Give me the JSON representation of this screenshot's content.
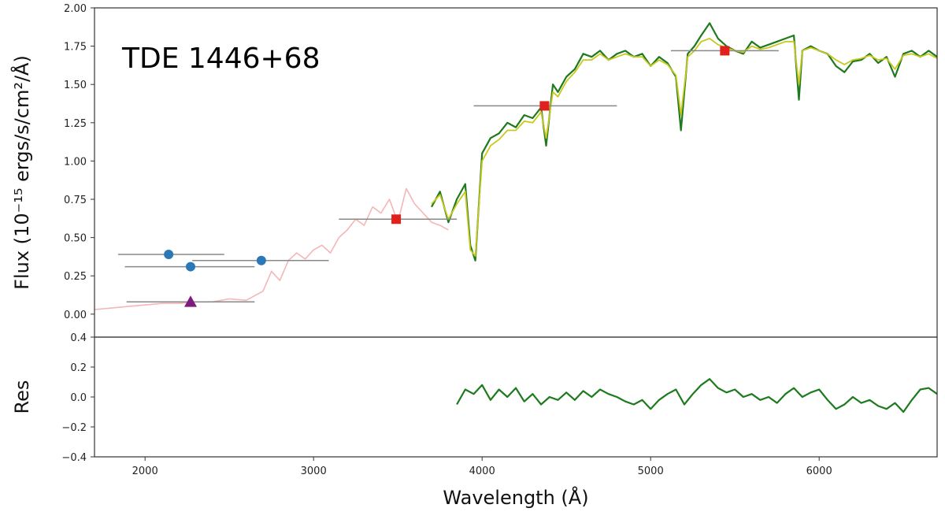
{
  "chart_data": [
    {
      "type": "line",
      "panel": "main",
      "annotation": "TDE 1446+68",
      "xlabel": "Wavelength (Å)",
      "ylabel": "Flux (10⁻¹⁵ ergs/s/cm²/Å)",
      "xlim": [
        1700,
        6700
      ],
      "ylim": [
        -0.15,
        2.0
      ],
      "xticks": [
        2000,
        3000,
        4000,
        5000,
        6000
      ],
      "xtick_labels": [
        "2000",
        "3000",
        "4000",
        "5000",
        "6000"
      ],
      "yticks": [
        0.0,
        0.25,
        0.5,
        0.75,
        1.0,
        1.25,
        1.5,
        1.75,
        2.0
      ],
      "ytick_labels": [
        "0.00",
        "0.25",
        "0.50",
        "0.75",
        "1.00",
        "1.25",
        "1.50",
        "1.75",
        "2.00"
      ],
      "grid": false,
      "colors": {
        "template": "#f4b6b6",
        "observed": "#1e7a1e",
        "model": "#c8c81e",
        "errorbar": "#888888",
        "uv_points": "#2b78b8",
        "triangle": "#7d1a7d",
        "optical_points": "#e0201c"
      },
      "series": [
        {
          "style": "template-line",
          "x": [
            1700,
            1800,
            1900,
            2000,
            2100,
            2200,
            2300,
            2400,
            2500,
            2600,
            2700,
            2750,
            2800,
            2850,
            2900,
            2950,
            3000,
            3050,
            3100,
            3150,
            3200,
            3250,
            3300,
            3350,
            3400,
            3450,
            3500,
            3550,
            3600,
            3650,
            3700,
            3750,
            3800
          ],
          "y": [
            0.03,
            0.04,
            0.05,
            0.06,
            0.07,
            0.07,
            0.08,
            0.08,
            0.1,
            0.09,
            0.15,
            0.28,
            0.22,
            0.35,
            0.4,
            0.36,
            0.42,
            0.45,
            0.4,
            0.5,
            0.55,
            0.62,
            0.58,
            0.7,
            0.66,
            0.75,
            0.6,
            0.82,
            0.72,
            0.66,
            0.6,
            0.58,
            0.55
          ]
        },
        {
          "style": "observed-line",
          "x": [
            3700,
            3750,
            3800,
            3850,
            3900,
            3930,
            3960,
            4000,
            4050,
            4100,
            4150,
            4200,
            4250,
            4300,
            4350,
            4380,
            4420,
            4450,
            4500,
            4550,
            4600,
            4650,
            4700,
            4750,
            4800,
            4850,
            4900,
            4950,
            5000,
            5050,
            5100,
            5150,
            5180,
            5220,
            5260,
            5300,
            5350,
            5400,
            5450,
            5500,
            5550,
            5600,
            5650,
            5700,
            5750,
            5800,
            5850,
            5880,
            5900,
            5950,
            6000,
            6050,
            6100,
            6150,
            6200,
            6250,
            6300,
            6350,
            6400,
            6450,
            6500,
            6550,
            6600,
            6650,
            6700
          ],
          "y": [
            0.7,
            0.8,
            0.6,
            0.75,
            0.85,
            0.45,
            0.35,
            1.05,
            1.15,
            1.18,
            1.25,
            1.22,
            1.3,
            1.28,
            1.35,
            1.1,
            1.5,
            1.45,
            1.55,
            1.6,
            1.7,
            1.68,
            1.72,
            1.66,
            1.7,
            1.72,
            1.68,
            1.7,
            1.62,
            1.68,
            1.64,
            1.55,
            1.2,
            1.7,
            1.75,
            1.82,
            1.9,
            1.8,
            1.75,
            1.72,
            1.7,
            1.78,
            1.74,
            1.76,
            1.78,
            1.8,
            1.82,
            1.4,
            1.72,
            1.75,
            1.72,
            1.7,
            1.62,
            1.58,
            1.65,
            1.66,
            1.7,
            1.64,
            1.68,
            1.55,
            1.7,
            1.72,
            1.68,
            1.72,
            1.68
          ]
        },
        {
          "style": "model-line",
          "x": [
            3700,
            3750,
            3800,
            3850,
            3900,
            3930,
            3960,
            4000,
            4050,
            4100,
            4150,
            4200,
            4250,
            4300,
            4350,
            4380,
            4420,
            4450,
            4500,
            4550,
            4600,
            4650,
            4700,
            4750,
            4800,
            4850,
            4900,
            4950,
            5000,
            5050,
            5100,
            5150,
            5180,
            5220,
            5260,
            5300,
            5350,
            5400,
            5450,
            5500,
            5550,
            5600,
            5650,
            5700,
            5750,
            5800,
            5850,
            5880,
            5900,
            5950,
            6000,
            6050,
            6100,
            6150,
            6200,
            6250,
            6300,
            6350,
            6400,
            6450,
            6500,
            6550,
            6600,
            6650,
            6700
          ],
          "y": [
            0.72,
            0.78,
            0.62,
            0.72,
            0.8,
            0.42,
            0.38,
            1.0,
            1.1,
            1.14,
            1.2,
            1.2,
            1.26,
            1.25,
            1.32,
            1.15,
            1.45,
            1.42,
            1.52,
            1.58,
            1.66,
            1.66,
            1.7,
            1.66,
            1.68,
            1.7,
            1.68,
            1.68,
            1.62,
            1.66,
            1.63,
            1.56,
            1.3,
            1.68,
            1.72,
            1.78,
            1.8,
            1.76,
            1.74,
            1.72,
            1.71,
            1.75,
            1.73,
            1.74,
            1.76,
            1.78,
            1.78,
            1.5,
            1.72,
            1.74,
            1.72,
            1.7,
            1.66,
            1.63,
            1.66,
            1.67,
            1.69,
            1.66,
            1.67,
            1.6,
            1.69,
            1.7,
            1.68,
            1.7,
            1.67
          ]
        }
      ],
      "photometry": [
        {
          "style": "circle",
          "x": 2140,
          "y": 0.39,
          "x_lo": 1840,
          "x_hi": 2470
        },
        {
          "style": "circle",
          "x": 2270,
          "y": 0.31,
          "x_lo": 1880,
          "x_hi": 2650
        },
        {
          "style": "circle",
          "x": 2690,
          "y": 0.35,
          "x_lo": 2280,
          "x_hi": 3090
        },
        {
          "style": "triangle",
          "x": 2270,
          "y": 0.08,
          "x_lo": 1890,
          "x_hi": 2650
        },
        {
          "style": "square",
          "x": 3490,
          "y": 0.62,
          "x_lo": 3150,
          "x_hi": 3850
        },
        {
          "style": "square",
          "x": 4370,
          "y": 1.36,
          "x_lo": 3950,
          "x_hi": 4800
        },
        {
          "style": "square",
          "x": 5440,
          "y": 1.72,
          "x_lo": 5120,
          "x_hi": 5760
        }
      ]
    },
    {
      "type": "line",
      "panel": "residual",
      "ylabel": "Res",
      "xlim": [
        1700,
        6700
      ],
      "ylim": [
        -0.4,
        0.4
      ],
      "yticks": [
        -0.4,
        -0.2,
        0.0,
        0.2,
        0.4
      ],
      "ytick_labels": [
        "−0.4",
        "−0.2",
        "0.0",
        "0.2",
        "0.4"
      ],
      "series": [
        {
          "style": "residual-line",
          "x": [
            3850,
            3900,
            3950,
            4000,
            4050,
            4100,
            4150,
            4200,
            4250,
            4300,
            4350,
            4400,
            4450,
            4500,
            4550,
            4600,
            4650,
            4700,
            4750,
            4800,
            4850,
            4900,
            4950,
            5000,
            5050,
            5100,
            5150,
            5200,
            5250,
            5300,
            5350,
            5400,
            5450,
            5500,
            5550,
            5600,
            5650,
            5700,
            5750,
            5800,
            5850,
            5900,
            5950,
            6000,
            6050,
            6100,
            6150,
            6200,
            6250,
            6300,
            6350,
            6400,
            6450,
            6500,
            6550,
            6600,
            6650,
            6700
          ],
          "y": [
            -0.05,
            0.05,
            0.02,
            0.08,
            -0.02,
            0.05,
            0.0,
            0.06,
            -0.03,
            0.02,
            -0.05,
            0.0,
            -0.02,
            0.03,
            -0.02,
            0.04,
            0.0,
            0.05,
            0.02,
            0.0,
            -0.03,
            -0.05,
            -0.02,
            -0.08,
            -0.02,
            0.02,
            0.05,
            -0.05,
            0.02,
            0.08,
            0.12,
            0.06,
            0.03,
            0.05,
            0.0,
            0.02,
            -0.02,
            0.0,
            -0.04,
            0.02,
            0.06,
            0.0,
            0.03,
            0.05,
            -0.02,
            -0.08,
            -0.05,
            0.0,
            -0.04,
            -0.02,
            -0.06,
            -0.08,
            -0.04,
            -0.1,
            -0.02,
            0.05,
            0.06,
            0.02
          ]
        }
      ]
    }
  ]
}
